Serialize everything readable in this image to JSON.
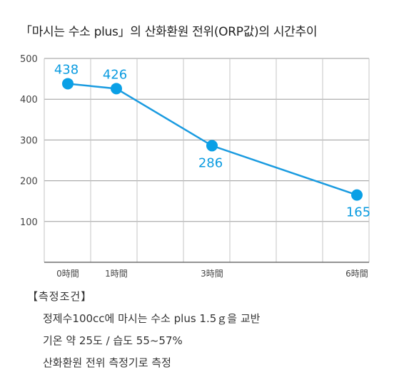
{
  "title": "「마시는 수소 plus」의 산화환원 전위(ORP값)의 시간추이",
  "chart_data": {
    "type": "line",
    "title": "「마시는 수소 plus」의 산화환원 전위(ORP값)의 시간추이",
    "categories": [
      "0時間",
      "1時間",
      "3時間",
      "6時間"
    ],
    "x": [
      0,
      1,
      3,
      6
    ],
    "values": [
      438,
      426,
      286,
      165
    ],
    "ylim": [
      0,
      500
    ],
    "yticks": [
      100,
      200,
      300,
      400,
      500
    ],
    "grid": true,
    "line_color": "#1a9be0",
    "marker_color": "#0aa0e6",
    "label_color": "#0a9be0"
  },
  "notes": {
    "header": "【측정조건】",
    "lines": [
      "정제수100cc에 마시는 수소 plus 1.5ｇ을 교반",
      "기온 약 25도 / 습도 55~57%",
      "산화환원 전위 측정기로 측정"
    ]
  }
}
